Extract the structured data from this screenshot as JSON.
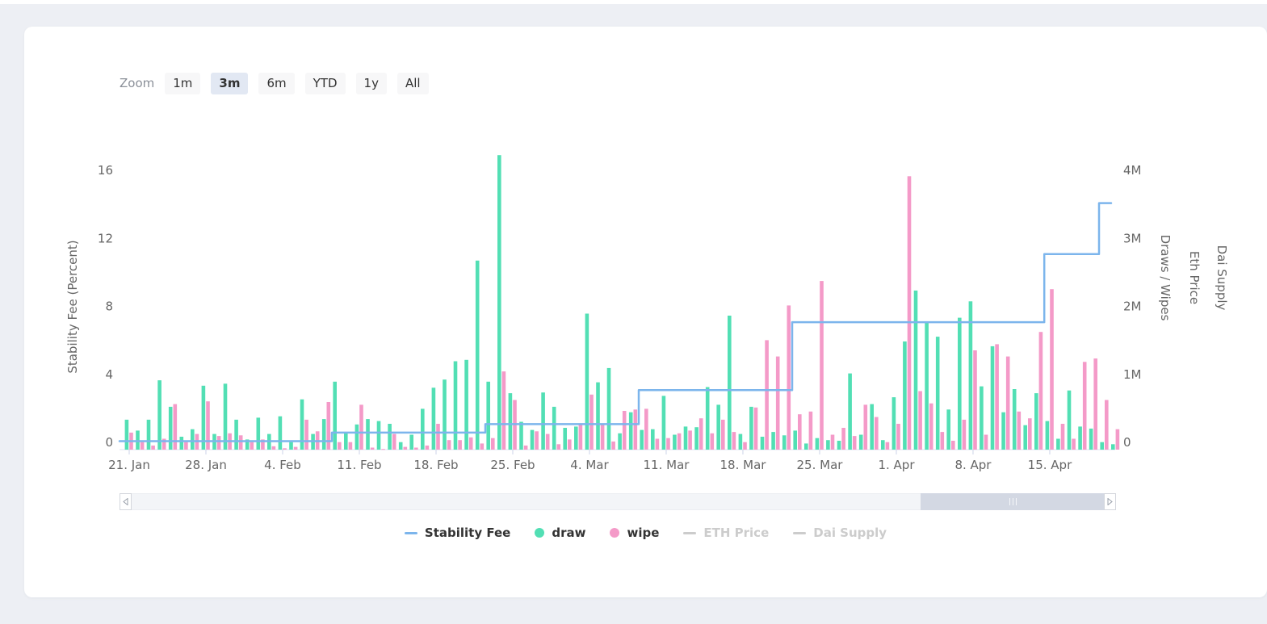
{
  "toolbar": {
    "zoom_label": "Zoom",
    "buttons": [
      {
        "label": "1m",
        "selected": false
      },
      {
        "label": "3m",
        "selected": true
      },
      {
        "label": "6m",
        "selected": false
      },
      {
        "label": "YTD",
        "selected": false
      },
      {
        "label": "1y",
        "selected": false
      },
      {
        "label": "All",
        "selected": false
      }
    ]
  },
  "chart_data": {
    "type": "mixed",
    "title": "",
    "left_axis": {
      "title": "Stability Fee (Percent)",
      "ticks": [
        0,
        4,
        8,
        12,
        16
      ],
      "range": [
        0,
        16
      ]
    },
    "right_axis": {
      "title": "Draws / Wipes",
      "tick_labels": [
        "0",
        "1M",
        "2M",
        "3M",
        "4M"
      ],
      "range_millions": [
        0,
        4
      ],
      "extra_axis_titles": [
        "Eth Price",
        "Dai Supply"
      ]
    },
    "x_axis": {
      "tick_labels": [
        "21. Jan",
        "28. Jan",
        "4. Feb",
        "11. Feb",
        "18. Feb",
        "25. Feb",
        "4. Mar",
        "11. Mar",
        "18. Mar",
        "25. Mar",
        "1. Apr",
        "8. Apr",
        "15. Apr"
      ],
      "tick_day_indices": [
        0,
        7,
        14,
        21,
        28,
        35,
        42,
        49,
        56,
        63,
        70,
        77,
        84
      ]
    },
    "dates": [
      "21 Jan",
      "22 Jan",
      "23 Jan",
      "24 Jan",
      "25 Jan",
      "26 Jan",
      "27 Jan",
      "28 Jan",
      "29 Jan",
      "30 Jan",
      "31 Jan",
      "1 Feb",
      "2 Feb",
      "3 Feb",
      "4 Feb",
      "5 Feb",
      "6 Feb",
      "7 Feb",
      "8 Feb",
      "9 Feb",
      "10 Feb",
      "11 Feb",
      "12 Feb",
      "13 Feb",
      "14 Feb",
      "15 Feb",
      "16 Feb",
      "17 Feb",
      "18 Feb",
      "19 Feb",
      "20 Feb",
      "21 Feb",
      "22 Feb",
      "23 Feb",
      "24 Feb",
      "25 Feb",
      "26 Feb",
      "27 Feb",
      "28 Feb",
      "1 Mar",
      "2 Mar",
      "3 Mar",
      "4 Mar",
      "5 Mar",
      "6 Mar",
      "7 Mar",
      "8 Mar",
      "9 Mar",
      "10 Mar",
      "11 Mar",
      "12 Mar",
      "13 Mar",
      "14 Mar",
      "15 Mar",
      "16 Mar",
      "17 Mar",
      "18 Mar",
      "19 Mar",
      "20 Mar",
      "21 Mar",
      "22 Mar",
      "23 Mar",
      "24 Mar",
      "25 Mar",
      "26 Mar",
      "27 Mar",
      "28 Mar",
      "29 Mar",
      "30 Mar",
      "31 Mar",
      "1 Apr",
      "2 Apr",
      "3 Apr",
      "4 Apr",
      "5 Apr",
      "6 Apr",
      "7 Apr",
      "8 Apr",
      "9 Apr",
      "10 Apr",
      "11 Apr",
      "12 Apr",
      "13 Apr",
      "14 Apr",
      "15 Apr",
      "16 Apr",
      "17 Apr",
      "18 Apr",
      "19 Apr",
      "20 Apr",
      "21 Apr"
    ],
    "series": [
      {
        "name": "Stability Fee",
        "type": "step-line",
        "color": "#7cb5ec",
        "axis": "left_percent",
        "steps": [
          {
            "start": "21 Jan",
            "value": 0.5
          },
          {
            "start": "9 Feb",
            "value": 1.0
          },
          {
            "start": "23 Feb",
            "value": 1.5
          },
          {
            "start": "9 Mar",
            "value": 3.5
          },
          {
            "start": "23 Mar",
            "value": 7.5
          },
          {
            "start": "15 Apr",
            "value": 11.5
          },
          {
            "start": "20 Apr",
            "value": 14.5
          }
        ]
      },
      {
        "name": "draw",
        "type": "bar",
        "color": "#52dfb4",
        "axis": "right_millions",
        "values": [
          0.44,
          0.28,
          0.44,
          1.02,
          0.63,
          0.19,
          0.3,
          0.94,
          0.23,
          0.97,
          0.44,
          0.15,
          0.47,
          0.23,
          0.49,
          0.11,
          0.74,
          0.23,
          0.45,
          1.0,
          0.24,
          0.37,
          0.45,
          0.42,
          0.38,
          0.11,
          0.22,
          0.6,
          0.91,
          1.03,
          1.3,
          1.32,
          2.78,
          1.0,
          4.33,
          0.83,
          0.41,
          0.29,
          0.84,
          0.63,
          0.32,
          0.34,
          2.0,
          0.99,
          1.2,
          0.24,
          0.55,
          0.29,
          0.3,
          0.79,
          0.22,
          0.34,
          0.33,
          0.92,
          0.66,
          1.97,
          0.23,
          0.63,
          0.19,
          0.26,
          0.21,
          0.28,
          0.09,
          0.17,
          0.14,
          0.13,
          1.12,
          0.22,
          0.67,
          0.14,
          0.77,
          1.59,
          2.34,
          1.87,
          1.66,
          0.59,
          1.94,
          2.18,
          0.93,
          1.52,
          0.55,
          0.89,
          0.36,
          0.83,
          0.42,
          0.16,
          0.87,
          0.34,
          0.31,
          0.11,
          0.08
        ]
      },
      {
        "name": "wipe",
        "type": "bar",
        "color": "#f49ac8",
        "axis": "right_millions",
        "values": [
          0.25,
          0.11,
          0.06,
          0.16,
          0.67,
          0.11,
          0.23,
          0.71,
          0.2,
          0.24,
          0.21,
          0.11,
          0.15,
          0.05,
          0.02,
          0.04,
          0.44,
          0.27,
          0.7,
          0.11,
          0.11,
          0.66,
          0.03,
          0.01,
          0.23,
          0.04,
          0.03,
          0.06,
          0.38,
          0.14,
          0.14,
          0.18,
          0.09,
          0.17,
          1.15,
          0.73,
          0.06,
          0.27,
          0.23,
          0.08,
          0.15,
          0.37,
          0.81,
          0.37,
          0.12,
          0.57,
          0.59,
          0.6,
          0.16,
          0.17,
          0.24,
          0.28,
          0.46,
          0.24,
          0.44,
          0.26,
          0.11,
          0.62,
          1.61,
          1.37,
          2.12,
          0.52,
          0.56,
          2.48,
          0.22,
          0.32,
          0.2,
          0.66,
          0.48,
          0.11,
          0.38,
          4.02,
          0.86,
          0.68,
          0.26,
          0.13,
          0.44,
          1.46,
          0.22,
          1.55,
          1.37,
          0.56,
          0.46,
          1.73,
          2.36,
          0.38,
          0.16,
          1.29,
          1.34,
          0.73,
          0.3
        ]
      },
      {
        "name": "ETH Price",
        "type": "line",
        "color": "#cccccc",
        "disabled": true,
        "values": []
      },
      {
        "name": "Dai Supply",
        "type": "line",
        "color": "#cccccc",
        "disabled": true,
        "values": []
      }
    ]
  },
  "legend": {
    "items": [
      {
        "label": "Stability Fee",
        "marker": "line",
        "color": "#7cb5ec",
        "active": true
      },
      {
        "label": "draw",
        "marker": "circle",
        "color": "#52dfb4",
        "active": true
      },
      {
        "label": "wipe",
        "marker": "circle",
        "color": "#f49ac8",
        "active": true
      },
      {
        "label": "ETH Price",
        "marker": "line",
        "color": "#cccccc",
        "active": false
      },
      {
        "label": "Dai Supply",
        "marker": "line",
        "color": "#cccccc",
        "active": false
      }
    ]
  },
  "scrollbar": {
    "thumb_start_pct": 80.4,
    "thumb_width_pct": 18.5
  }
}
